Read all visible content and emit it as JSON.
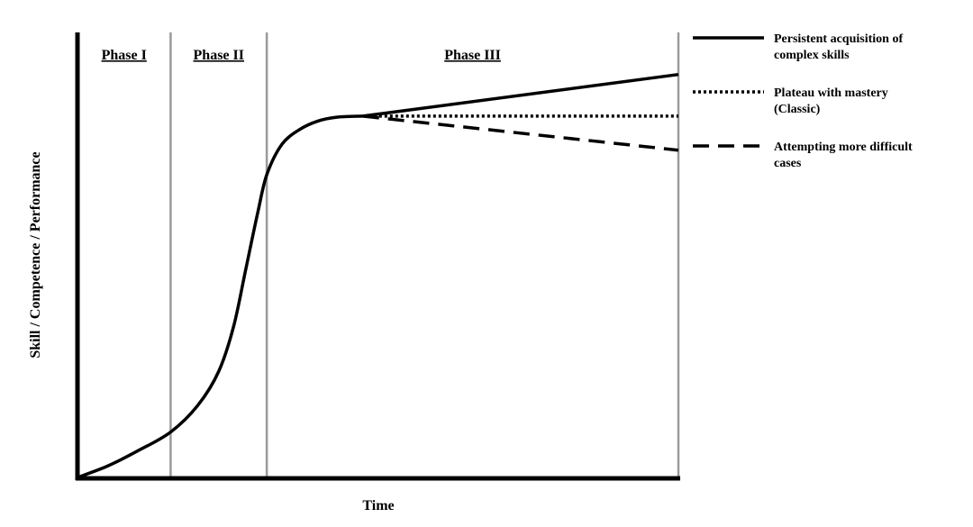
{
  "chart_data": {
    "type": "line",
    "title": "",
    "xlabel": "Time",
    "ylabel": "Skill / Competence / Performance",
    "xlim": [
      0,
      100
    ],
    "ylim": [
      0,
      100
    ],
    "grid": false,
    "legend_position": "right",
    "phases": [
      {
        "label": "Phase I",
        "start": 0,
        "end": 15.5
      },
      {
        "label": "Phase II",
        "start": 15.5,
        "end": 31.5
      },
      {
        "label": "Phase III",
        "start": 31.5,
        "end": 100
      }
    ],
    "common_curve": {
      "x": [
        0,
        5,
        10,
        15.5,
        20,
        23.5,
        26,
        28,
        30,
        31.5,
        34,
        37,
        40,
        43,
        47.5
      ],
      "y": [
        0,
        3,
        7,
        12,
        19,
        28,
        40,
        55,
        70,
        80,
        88,
        92,
        94.2,
        95.2,
        95.5
      ]
    },
    "series": [
      {
        "name": "Persistent acquisition of complex skills",
        "style": "solid",
        "x": [
          47.5,
          100
        ],
        "y": [
          95.5,
          106.5
        ]
      },
      {
        "name": "Plateau with mastery (Classic)",
        "style": "dotted",
        "x": [
          47.5,
          100
        ],
        "y": [
          95.5,
          95.5
        ]
      },
      {
        "name": "Attempting more difficult cases",
        "style": "dashed",
        "x": [
          47.5,
          100
        ],
        "y": [
          95.5,
          86.5
        ]
      }
    ],
    "legend": [
      {
        "style": "solid",
        "lines": [
          "Persistent acquisition of",
          "complex skills"
        ]
      },
      {
        "style": "dotted",
        "lines": [
          "Plateau with mastery",
          "(Classic)"
        ]
      },
      {
        "style": "dashed",
        "lines": [
          "Attempting more difficult",
          "cases"
        ]
      }
    ]
  }
}
